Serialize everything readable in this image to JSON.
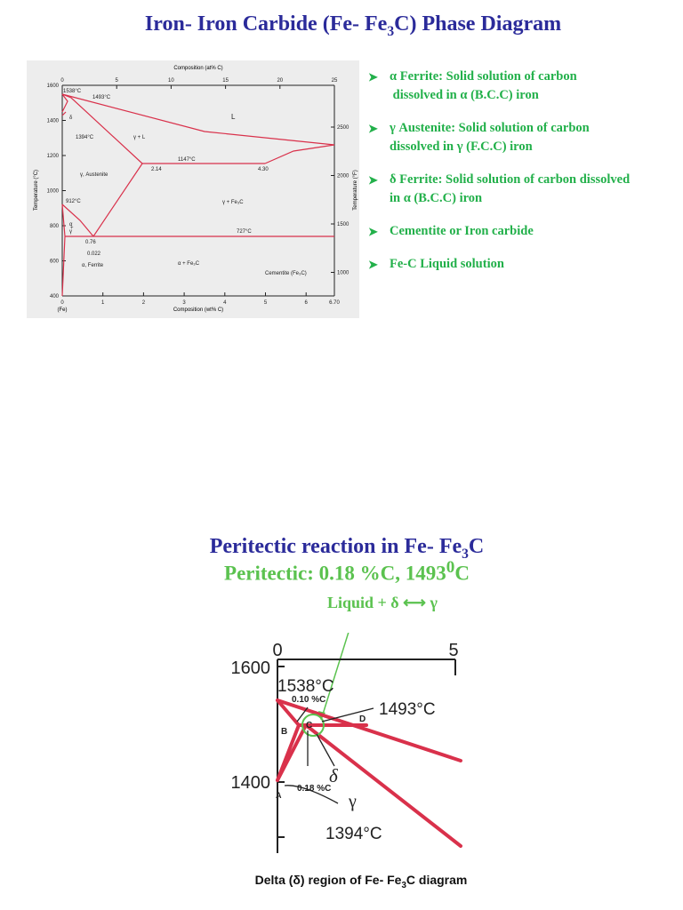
{
  "title": {
    "main": "Iron- Iron Carbide (Fe- Fe",
    "sub": "3",
    "tail": "C) Phase Diagram"
  },
  "bullets": [
    {
      "line1": "α Ferrite: Solid solution of carbon",
      "line2": " dissolved in α (B.C.C) iron"
    },
    {
      "line1": "γ Austenite: Solid solution of carbon",
      "line2": "dissolved in γ (F.C.C) iron"
    },
    {
      "line1": "δ Ferrite: Solid solution of carbon dissolved",
      "line2": "in α (B.C.C) iron"
    },
    {
      "line1": "Cementite or Iron carbide",
      "line2": ""
    },
    {
      "line1": "Fe-C Liquid solution",
      "line2": ""
    }
  ],
  "colors": {
    "title": "#2b2b9a",
    "bullets": "#22b04a",
    "curves": "#d9314b",
    "highlight": "#5bc24f"
  },
  "main_diagram": {
    "top_axis_label": "Composition (at% C)",
    "top_ticks": [
      "0",
      "5",
      "10",
      "15",
      "20",
      "25"
    ],
    "bottom_axis_label": "Composition (wt% C)",
    "bottom_ticks": [
      "0",
      "1",
      "2",
      "3",
      "4",
      "5",
      "6",
      "6.70"
    ],
    "origin_note": "(Fe)",
    "left_axis_label": "Temperature (°C)",
    "left_ticks": [
      "1600",
      "1400",
      "1200",
      "1000",
      "800",
      "600",
      "400"
    ],
    "right_axis_label": "Temperature (°F)",
    "right_ticks": [
      "2500",
      "2000",
      "1500",
      "1000"
    ],
    "labels": {
      "t1538": "1538°C",
      "t1493": "1493°C",
      "t1394": "1394°C",
      "t1147": "1147°C",
      "t912": "912°C",
      "t727": "727°C",
      "c214": "2.14",
      "c430": "4.30",
      "c076": "0.76",
      "c0022": "0.022",
      "L": "L",
      "gammaL": "γ + L",
      "austenite": "γ, Austenite",
      "gammaFe3C": "γ + Fe₃C",
      "alphaFerrite": "α, Ferrite",
      "alphaFe3C": "α + Fe₃C",
      "cementite": "Cementite (Fe₃C)",
      "delta": "δ",
      "alpha": "α",
      "gamma": "γ",
      "plus": "+"
    }
  },
  "sub_title": {
    "main": "Peritectic reaction in Fe- Fe",
    "sub": "3",
    "tail": "C"
  },
  "peritectic": {
    "text": "Peritectic: 0.18 %C, 1493",
    "sup": "0",
    "tail": "C"
  },
  "reaction": {
    "left": "Liquid + δ",
    "arrow": "⟷",
    "right": "γ"
  },
  "delta_diagram": {
    "tick0": "0",
    "tick5": "5",
    "t1600": "1600",
    "t1400": "1400",
    "t1538": "1538°C",
    "t1493": "1493°C",
    "t1394": "1394°C",
    "c010": "0.10 %C",
    "c018": "0.18 %C",
    "delta": "δ",
    "gamma": "γ",
    "A": "A",
    "B": "B",
    "C": "C",
    "D": "D"
  },
  "caption": {
    "main": "Delta (δ) region of Fe- Fe",
    "sub": "3",
    "tail": "C diagram"
  }
}
